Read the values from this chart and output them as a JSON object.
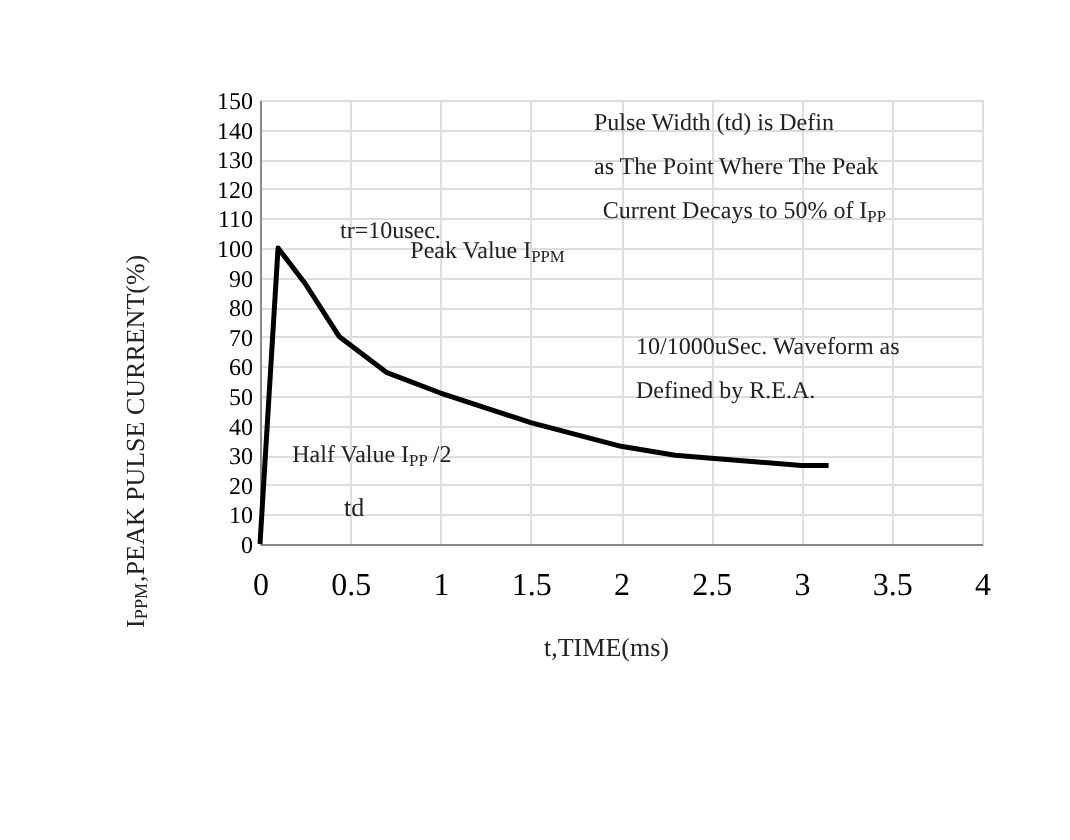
{
  "chart_data": {
    "type": "line",
    "xlabel": "t,TIME(ms)",
    "ylabel": "I$_{PPM}$,PEAK PULSE CURRENT(%)",
    "x": [
      0,
      0.1,
      0.25,
      0.44,
      0.7,
      1,
      1.5,
      2,
      2.3,
      2.5,
      3,
      3.15
    ],
    "series": [
      {
        "color": "#000000",
        "values": [
          0,
          100,
          88,
          70,
          58,
          51,
          41,
          33,
          30,
          29,
          26.5,
          26.5
        ]
      }
    ],
    "xlim": [
      0,
      4
    ],
    "xticks": [
      0,
      0.5,
      1,
      1.5,
      2,
      2.5,
      3,
      3.5,
      4
    ],
    "ylim": [
      0,
      150
    ],
    "yticks": [
      0,
      10,
      20,
      30,
      40,
      50,
      60,
      70,
      80,
      90,
      100,
      110,
      120,
      130,
      140,
      150
    ],
    "grid": true,
    "legend": false,
    "marker": "none",
    "line_style": "solid",
    "annotations": [
      "tr=10usec.",
      "Peak Value I$_{PPM}$",
      "Pulse Width (td) is Defin\nas The Point Where The Peak\nCurrent Decays to 50% of I$_{PP}$",
      "10/1000uSec. Waveform as\nDefined by R.E.A.",
      "Half Value I$_{PP}$/2",
      "td"
    ]
  }
}
